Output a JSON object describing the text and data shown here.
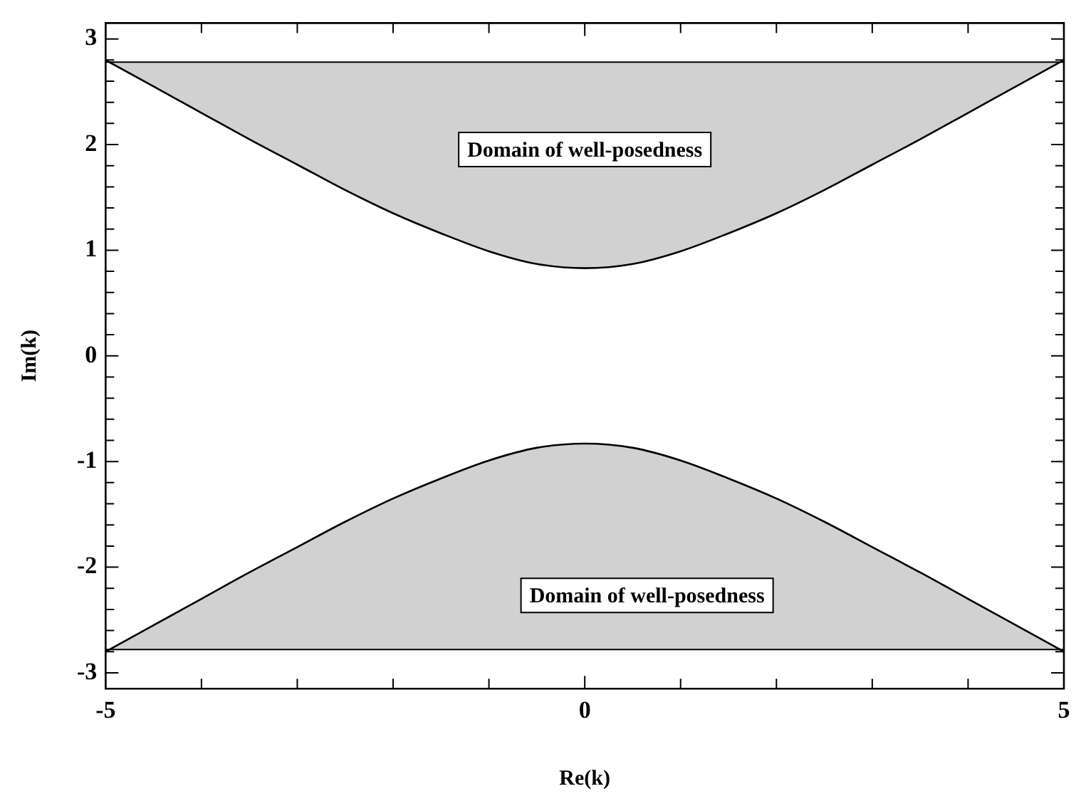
{
  "chart_data": {
    "type": "area",
    "xlabel": "Re(k)",
    "ylabel": "Im(k)",
    "xlim": [
      -5,
      5
    ],
    "ylim": [
      -3.15,
      3.15
    ],
    "xticks": [
      -5,
      {
        "value": -4,
        "label": null
      },
      {
        "value": -3,
        "label": null
      },
      {
        "value": -2,
        "label": null
      },
      {
        "value": -1,
        "label": null
      },
      0,
      {
        "value": 1,
        "label": null
      },
      {
        "value": 2,
        "label": null
      },
      {
        "value": 3,
        "label": null
      },
      {
        "value": 4,
        "label": null
      },
      5
    ],
    "yticks": [
      -3,
      {
        "value": -2.8,
        "label": null
      },
      {
        "value": -2.6,
        "label": null
      },
      {
        "value": -2.4,
        "label": null
      },
      {
        "value": -2.2,
        "label": null
      },
      -2,
      {
        "value": -1.8,
        "label": null
      },
      {
        "value": -1.6,
        "label": null
      },
      {
        "value": -1.4,
        "label": null
      },
      {
        "value": -1.2,
        "label": null
      },
      -1,
      {
        "value": -0.8,
        "label": null
      },
      {
        "value": -0.6,
        "label": null
      },
      {
        "value": -0.4,
        "label": null
      },
      {
        "value": -0.2,
        "label": null
      },
      0,
      {
        "value": 0.2,
        "label": null
      },
      {
        "value": 0.4,
        "label": null
      },
      {
        "value": 0.6,
        "label": null
      },
      {
        "value": 0.8,
        "label": null
      },
      1,
      {
        "value": 1.2,
        "label": null
      },
      {
        "value": 1.4,
        "label": null
      },
      {
        "value": 1.6,
        "label": null
      },
      {
        "value": 1.8,
        "label": null
      },
      2,
      {
        "value": 2.2,
        "label": null
      },
      {
        "value": 2.4,
        "label": null
      },
      {
        "value": 2.6,
        "label": null
      },
      {
        "value": 2.8,
        "label": null
      },
      3
    ],
    "x": [
      -5,
      -4.5,
      -4,
      -3.5,
      -3,
      -2.5,
      -2,
      -1.5,
      -1,
      -0.5,
      0,
      0.5,
      1,
      1.5,
      2,
      2.5,
      3,
      3.5,
      4,
      4.5,
      5
    ],
    "series": [
      {
        "color": "#000000",
        "values": [
          2.8,
          2.55,
          2.3,
          2.05,
          1.81,
          1.57,
          1.35,
          1.16,
          0.99,
          0.87,
          0.83,
          0.87,
          0.99,
          1.16,
          1.35,
          1.57,
          1.81,
          2.05,
          2.3,
          2.55,
          2.8
        ]
      },
      {
        "color": "#000000",
        "values": [
          -2.8,
          -2.55,
          -2.3,
          -2.05,
          -1.81,
          -1.57,
          -1.35,
          -1.16,
          -0.99,
          -0.87,
          -0.83,
          -0.87,
          -0.99,
          -1.16,
          -1.35,
          -1.57,
          -1.81,
          -2.05,
          -2.3,
          -2.55,
          -2.8
        ]
      }
    ],
    "ref_lines": [
      {
        "axis": "y",
        "value": 2.78,
        "color": "#000000"
      },
      {
        "axis": "y",
        "value": -2.78,
        "color": "#000000"
      }
    ],
    "annotations": [
      "Domain of well-posedness",
      "Domain of well-posedness"
    ],
    "marker": "none",
    "line_style": "solid",
    "grid": false,
    "legend": false
  }
}
